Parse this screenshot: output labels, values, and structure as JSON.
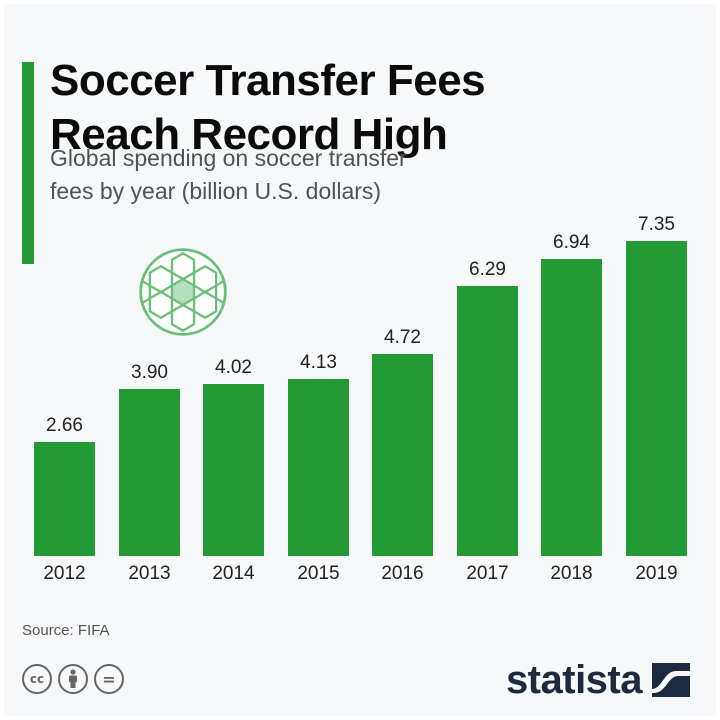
{
  "header": {
    "title_line1": "Soccer Transfer Fees",
    "title_line2": "Reach Record High",
    "subtitle_line1": "Global spending on soccer transfer",
    "subtitle_line2": "fees by year (billion U.S. dollars)"
  },
  "colors": {
    "accent": "#249a35",
    "background": "#f6f8fa",
    "logo": "#1c2a3f"
  },
  "chart_data": {
    "type": "bar",
    "title": "Soccer Transfer Fees Reach Record High",
    "subtitle": "Global spending on soccer transfer fees by year (billion U.S. dollars)",
    "categories": [
      "2012",
      "2013",
      "2014",
      "2015",
      "2016",
      "2017",
      "2018",
      "2019"
    ],
    "values": [
      2.66,
      3.9,
      4.02,
      4.13,
      4.72,
      6.29,
      6.94,
      7.35
    ],
    "value_labels": [
      "2.66",
      "3.90",
      "4.02",
      "4.13",
      "4.72",
      "6.29",
      "6.94",
      "7.35"
    ],
    "xlabel": "",
    "ylabel": "billion U.S. dollars",
    "ylim": [
      0,
      7.35
    ],
    "grid": false,
    "legend": "none",
    "bar_color": "#249a35"
  },
  "footer": {
    "source": "Source: FIFA",
    "license_icons": [
      "cc-icon",
      "attribution-icon",
      "no-derivatives-icon"
    ],
    "cc_label": "cc",
    "nd_label": "=",
    "logo_text": "statista"
  }
}
